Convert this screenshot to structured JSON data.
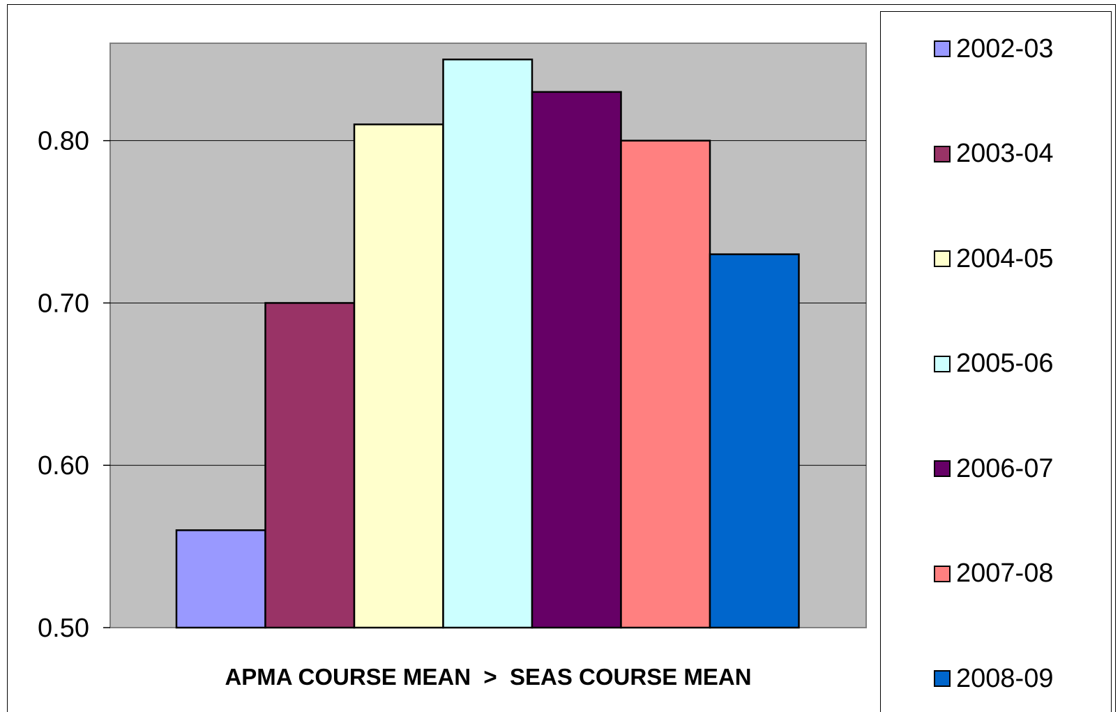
{
  "chart_data": {
    "type": "bar",
    "title": "",
    "xlabel": "APMA COURSE MEAN  >  SEAS COURSE MEAN",
    "ylabel": "",
    "ylim": [
      0.5,
      0.86
    ],
    "yticks": [
      "0.50",
      "0.60",
      "0.70",
      "0.80"
    ],
    "grid": true,
    "legend_position": "right",
    "plot_background": "#c0c0c0",
    "series": [
      {
        "name": "2002-03",
        "value": 0.56,
        "color": "#9999ff"
      },
      {
        "name": "2003-04",
        "value": 0.7,
        "color": "#993366"
      },
      {
        "name": "2004-05",
        "value": 0.81,
        "color": "#ffffcc"
      },
      {
        "name": "2005-06",
        "value": 0.85,
        "color": "#ccffff"
      },
      {
        "name": "2006-07",
        "value": 0.83,
        "color": "#660066"
      },
      {
        "name": "2007-08",
        "value": 0.8,
        "color": "#ff8080"
      },
      {
        "name": "2008-09",
        "value": 0.73,
        "color": "#0066cc"
      }
    ]
  }
}
